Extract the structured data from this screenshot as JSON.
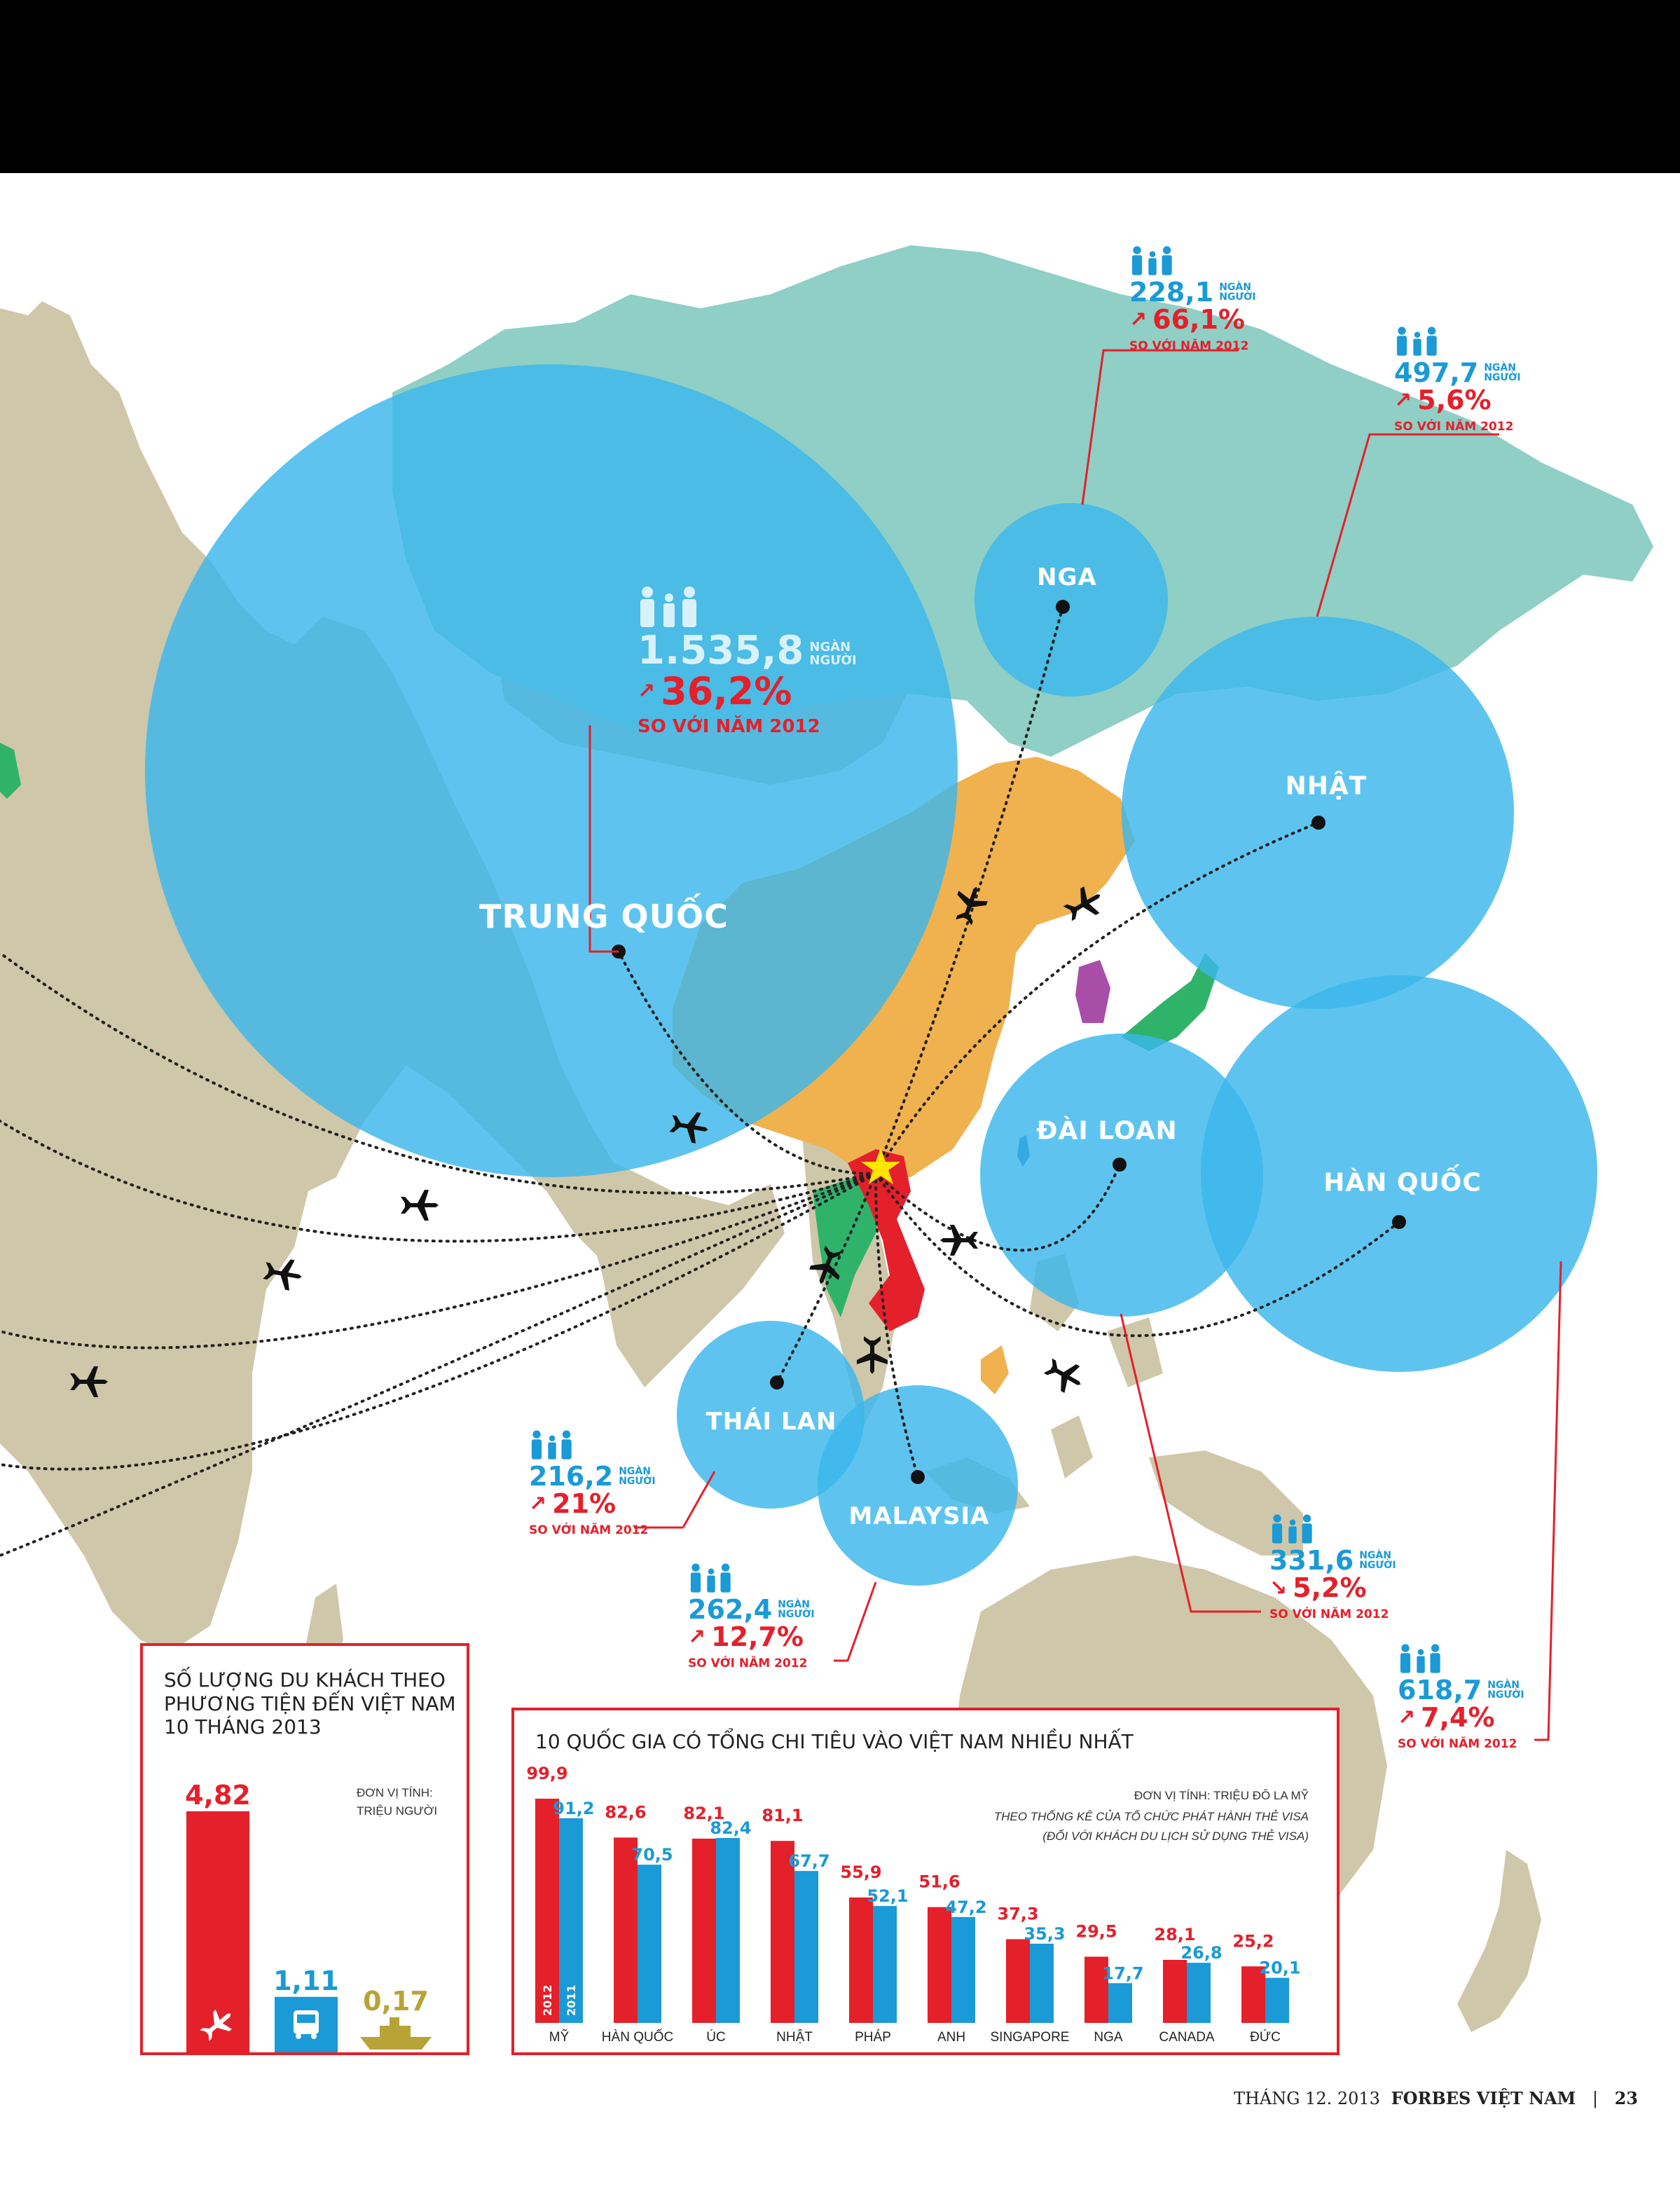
{
  "map_labels": {
    "china": "TRUNG QUỐC",
    "russia": "NGA",
    "japan": "NHẬT",
    "taiwan": "ĐÀI LOAN",
    "korea": "HÀN QUỐC",
    "thailand": "THÁI LAN",
    "malaysia": "MALAYSIA"
  },
  "stats": {
    "china": {
      "value": "1.535,8",
      "unit1": "NGÀN",
      "unit2": "NGƯỜI",
      "change": "36,2%",
      "direction": "up",
      "note": "SO VỚI NĂM 2012"
    },
    "russia": {
      "value": "228,1",
      "unit1": "NGÀN",
      "unit2": "NGƯỜI",
      "change": "66,1%",
      "direction": "up",
      "note": "SO VỚI NĂM 2012"
    },
    "japan": {
      "value": "497,7",
      "unit1": "NGÀN",
      "unit2": "NGƯỜI",
      "change": "5,6%",
      "direction": "up",
      "note": "SO VỚI NĂM 2012"
    },
    "thailand": {
      "value": "216,2",
      "unit1": "NGÀN",
      "unit2": "NGƯỜI",
      "change": "21%",
      "direction": "up",
      "note": "SO VỚI NĂM 2012"
    },
    "malaysia": {
      "value": "262,4",
      "unit1": "NGÀN",
      "unit2": "NGƯỜI",
      "change": "12,7%",
      "direction": "up",
      "note": "SO VỚI NĂM 2012"
    },
    "taiwan": {
      "value": "331,6",
      "unit1": "NGÀN",
      "unit2": "NGƯỜI",
      "change": "5,2%",
      "direction": "down",
      "note": "SO VỚI NĂM 2012"
    },
    "korea": {
      "value": "618,7",
      "unit1": "NGÀN",
      "unit2": "NGƯỜI",
      "change": "7,4%",
      "direction": "up",
      "note": "SO VỚI NĂM 2012"
    }
  },
  "chart_data": [
    {
      "type": "bar",
      "title": "SỐ LƯỢNG DU KHÁCH THEO PHƯƠNG TIỆN ĐẾN VIỆT NAM 10 THÁNG 2013",
      "unit_label": "ĐƠN VỊ TÍNH:",
      "unit": "TRIỆU NGƯỜI",
      "categories": [
        "air",
        "road",
        "sea"
      ],
      "category_icons": [
        "airplane-icon",
        "bus-icon",
        "ship-icon"
      ],
      "values": [
        4.82,
        1.11,
        0.17
      ],
      "labels": [
        "4,82",
        "1,11",
        "0,17"
      ],
      "colors": [
        "#e4202b",
        "#1a9ad6",
        "#b8a336"
      ],
      "ylim": [
        0,
        4.82
      ]
    },
    {
      "type": "bar",
      "title": "10 QUỐC GIA CÓ TỔNG CHI TIÊU VÀO VIỆT NAM NHIỀU NHẤT",
      "unit": "ĐƠN VỊ TÍNH: TRIỆU ĐÔ LA MỸ",
      "source": "THEO THỐNG KÊ CỦA TỔ CHỨC PHÁT HÀNH THẺ VISA",
      "source_note": "(ĐỐI VỚI KHÁCH DU LỊCH SỬ DỤNG THẺ VISA)",
      "categories": [
        "MỸ",
        "HÀN QUỐC",
        "ÚC",
        "NHẬT",
        "PHÁP",
        "ANH",
        "SINGAPORE",
        "NGA",
        "CANADA",
        "ĐỨC"
      ],
      "series": [
        {
          "name": "2012",
          "color": "#e4202b",
          "values": [
            99.9,
            82.6,
            82.1,
            81.1,
            55.9,
            51.6,
            37.3,
            29.5,
            28.1,
            25.2
          ],
          "labels": [
            "99,9",
            "82,6",
            "82,1",
            "81,1",
            "55,9",
            "51,6",
            "37,3",
            "29,5",
            "28,1",
            "25,2"
          ]
        },
        {
          "name": "2011",
          "color": "#1a9ad6",
          "values": [
            91.2,
            70.5,
            82.4,
            67.7,
            52.1,
            47.2,
            35.3,
            17.7,
            26.8,
            20.1
          ],
          "labels": [
            "91,2",
            "70,5",
            "82,4",
            "67,7",
            "52,1",
            "47,2",
            "35,3",
            "17,7",
            "26,8",
            "20,1"
          ]
        }
      ],
      "ylim": [
        0,
        99.9
      ]
    }
  ],
  "footer": {
    "date": "THÁNG 12. 2013",
    "magazine": "FORBES VIỆT NAM",
    "separator": "|",
    "page": "23"
  },
  "colors": {
    "red": "#e4202b",
    "blue": "#1a9ad6",
    "bubble": "#3bb7ec",
    "land": "#cfc7a9",
    "russia": "#8fcfc5",
    "china": "#f0b14f"
  }
}
